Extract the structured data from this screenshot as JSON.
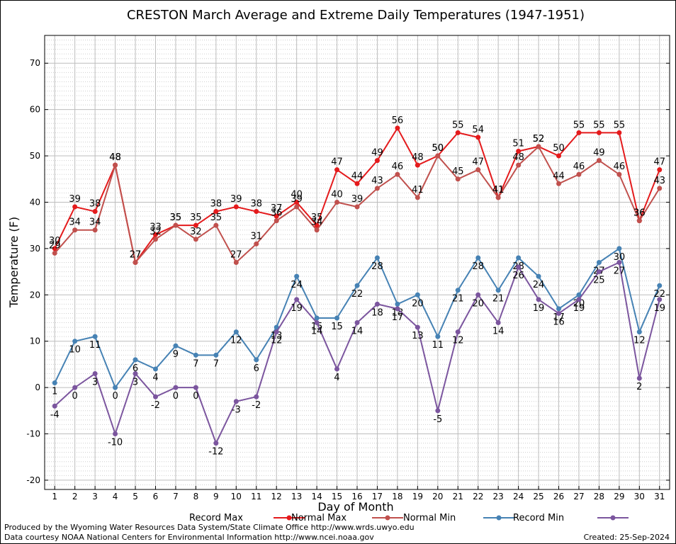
{
  "chart_data": {
    "type": "line",
    "title": "CRESTON March Average and Extreme Daily Temperatures (1947-1951)",
    "xlabel": "Day of Month",
    "ylabel": "Temperature (F)",
    "ylim": [
      -22,
      76
    ],
    "yticks": [
      -20,
      -10,
      0,
      10,
      20,
      30,
      40,
      50,
      60,
      70
    ],
    "x": [
      1,
      2,
      3,
      4,
      5,
      6,
      7,
      8,
      9,
      10,
      11,
      12,
      13,
      14,
      15,
      16,
      17,
      18,
      19,
      20,
      21,
      22,
      23,
      24,
      25,
      26,
      27,
      28,
      29,
      30,
      31
    ],
    "grid": true,
    "legend_position": "bottom",
    "series": [
      {
        "name": "Record Max",
        "color": "#e41a1c",
        "label_pos": "above",
        "values": [
          30,
          39,
          38,
          48,
          27,
          33,
          35,
          35,
          38,
          39,
          38,
          37,
          40,
          35,
          47,
          44,
          49,
          56,
          48,
          50,
          55,
          54,
          41,
          51,
          52,
          50,
          55,
          55,
          55,
          36,
          47
        ]
      },
      {
        "name": "Normal Max",
        "color": "#c0504d",
        "label_pos": "above",
        "values": [
          29,
          34,
          34,
          48,
          27,
          32,
          35,
          32,
          35,
          27,
          31,
          36,
          39,
          34,
          40,
          39,
          43,
          46,
          41,
          50,
          45,
          47,
          41,
          48,
          52,
          44,
          46,
          49,
          46,
          36,
          43
        ]
      },
      {
        "name": "Normal Min",
        "color": "#4682b4",
        "label_pos": "below",
        "values": [
          1,
          10,
          11,
          0,
          6,
          4,
          9,
          7,
          7,
          12,
          6,
          13,
          24,
          15,
          15,
          22,
          28,
          18,
          20,
          11,
          21,
          28,
          21,
          28,
          24,
          17,
          20,
          27,
          30,
          12,
          22
        ]
      },
      {
        "name": "Record Min",
        "color": "#7b559e",
        "label_pos": "below",
        "values": [
          -4,
          0,
          3,
          -10,
          3,
          -2,
          0,
          0,
          -12,
          -3,
          -2,
          12,
          19,
          14,
          4,
          14,
          18,
          17,
          13,
          -5,
          12,
          20,
          14,
          26,
          19,
          16,
          19,
          25,
          27,
          2,
          19
        ]
      }
    ]
  },
  "footer": {
    "produced_by": "Produced by the Wyoming Water Resources Data System/State Climate Office http://www.wrds.uwyo.edu",
    "courtesy": "Data courtesy NOAA National Centers for Environmental Information http://www.ncei.noaa.gov",
    "created": "Created:  25-Sep-2024"
  }
}
